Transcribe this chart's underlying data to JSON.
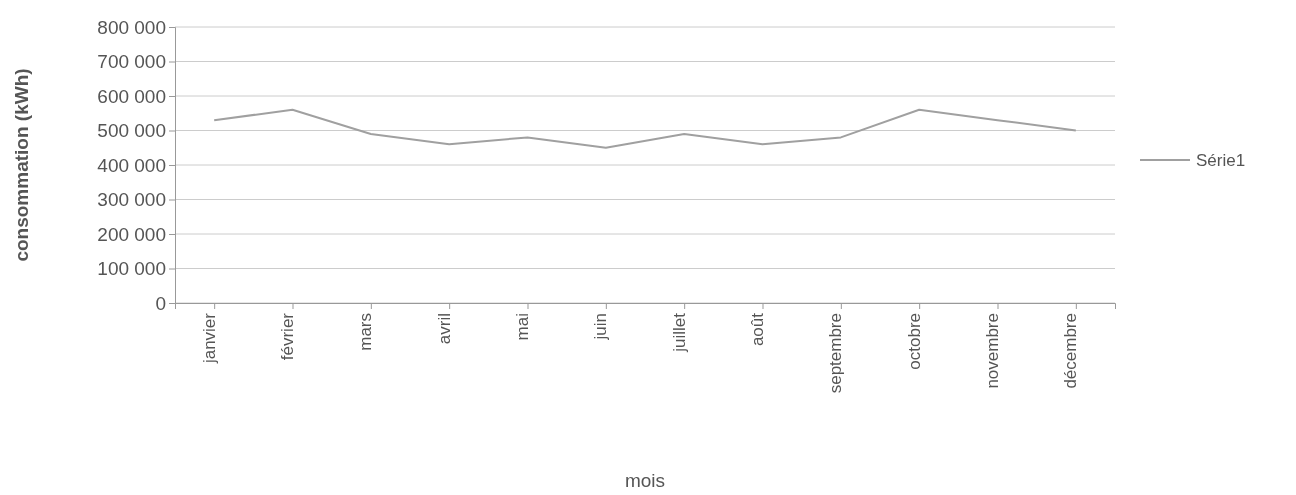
{
  "chart_data": {
    "type": "line",
    "xlabel": "mois",
    "ylabel": "consommation (kWh)",
    "categories": [
      "janvier",
      "février",
      "mars",
      "avril",
      "mai",
      "juin",
      "juillet",
      "août",
      "septembre",
      "octobre",
      "novembre",
      "décembre"
    ],
    "series": [
      {
        "name": "Série1",
        "color": "#a0a0a0",
        "values": [
          530000,
          560000,
          490000,
          460000,
          480000,
          450000,
          490000,
          460000,
          480000,
          560000,
          530000,
          500000
        ]
      }
    ],
    "ylim": [
      0,
      800000
    ],
    "yticks": [
      {
        "value": 0,
        "label": "0"
      },
      {
        "value": 100000,
        "label": "100 000"
      },
      {
        "value": 200000,
        "label": "200 000"
      },
      {
        "value": 300000,
        "label": "300 000"
      },
      {
        "value": 400000,
        "label": "400 000"
      },
      {
        "value": 500000,
        "label": "500 000"
      },
      {
        "value": 600000,
        "label": "600 000"
      },
      {
        "value": 700000,
        "label": "700 000"
      },
      {
        "value": 800000,
        "label": "800 000"
      }
    ],
    "grid": "y",
    "legend": "right",
    "marker": "none",
    "line_style": "solid"
  }
}
